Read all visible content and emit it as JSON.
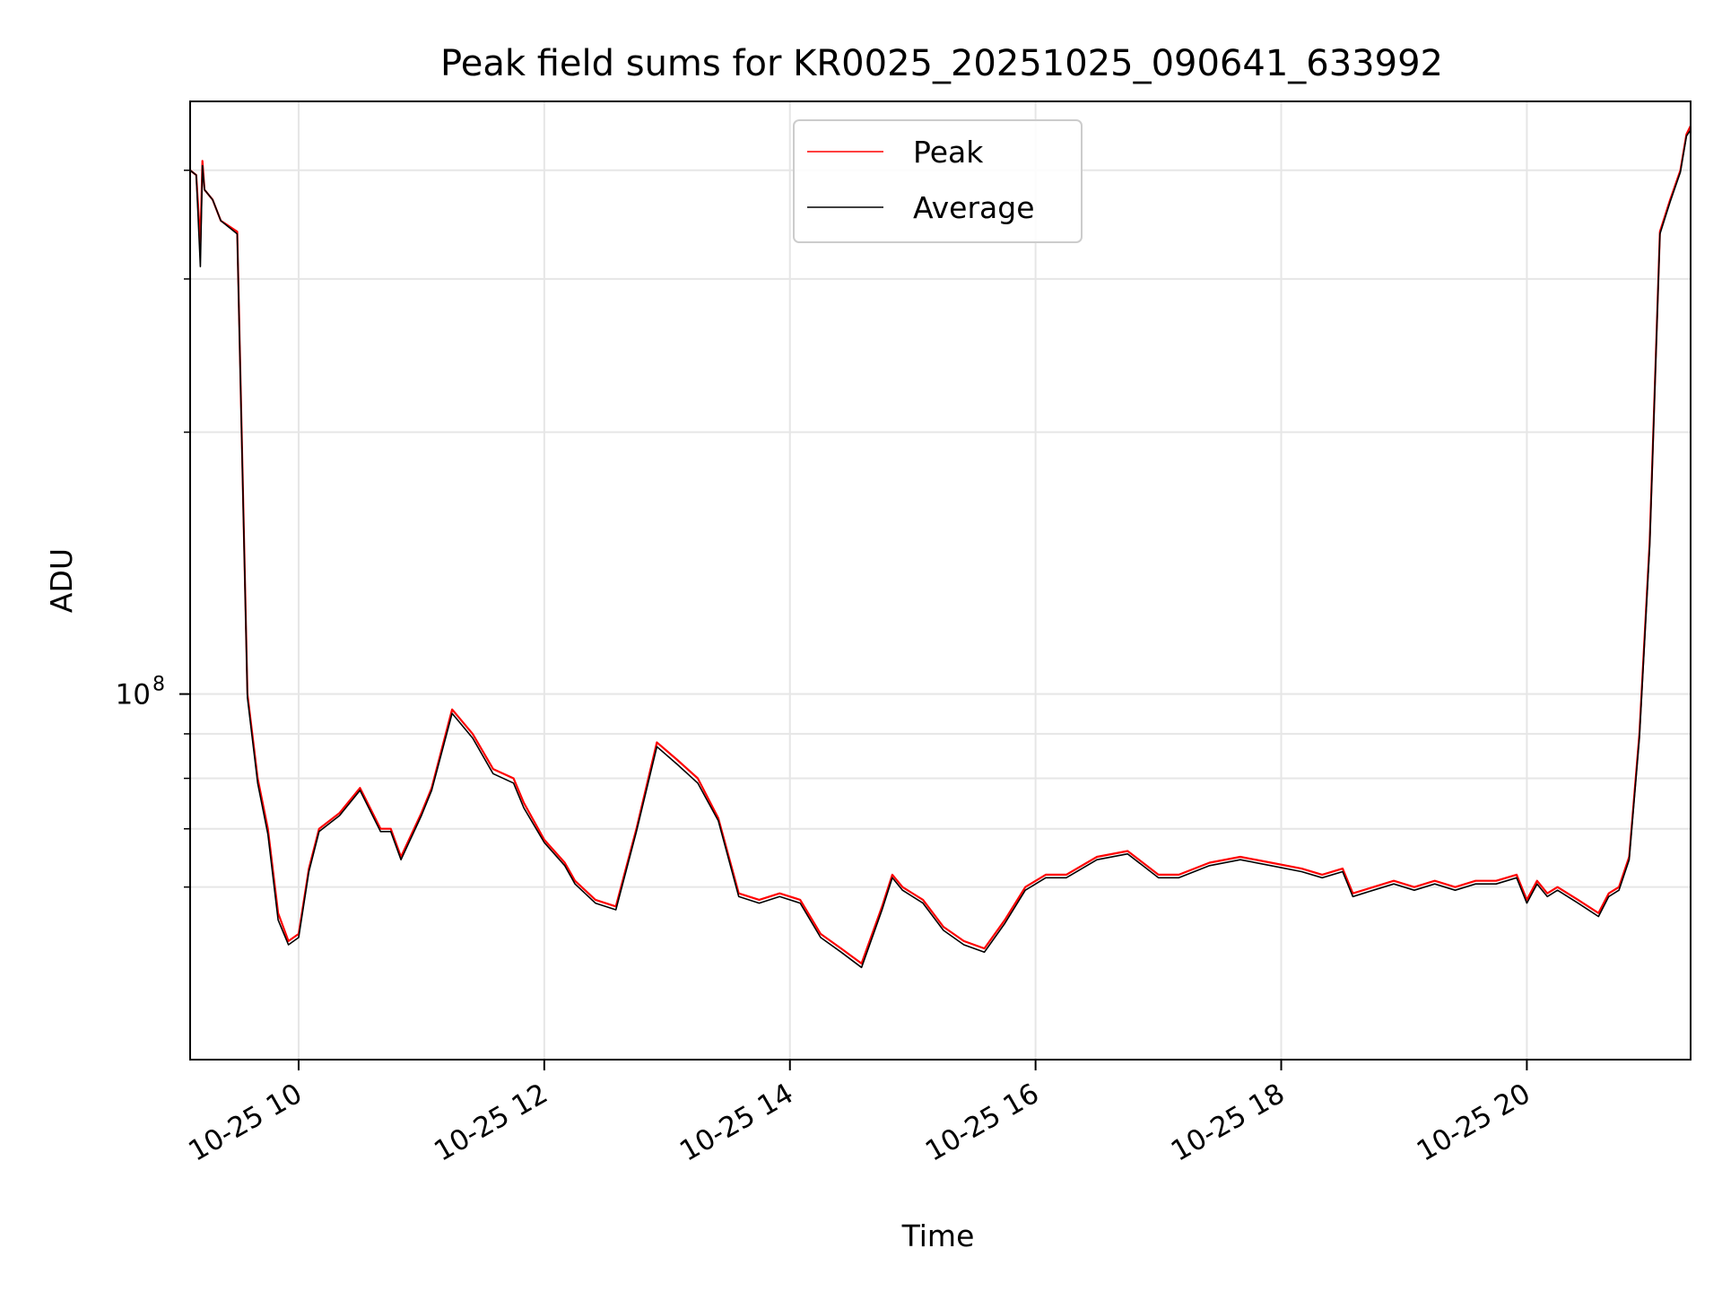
{
  "chart_data": {
    "type": "line",
    "title": "Peak field sums for KR0025_20251025_090641_633992",
    "xlabel": "Time",
    "ylabel": "ADU",
    "yscale": "log",
    "grid": true,
    "legend_position": "top-center",
    "xlim": [
      "2025-10-25 09:07",
      "2025-10-25 21:20"
    ],
    "ylim": [
      38000000,
      480000000
    ],
    "x_ticks": [
      {
        "t": "2025-10-25 10:00",
        "label": "10-25 10"
      },
      {
        "t": "2025-10-25 12:00",
        "label": "10-25 12"
      },
      {
        "t": "2025-10-25 14:00",
        "label": "10-25 14"
      },
      {
        "t": "2025-10-25 16:00",
        "label": "10-25 16"
      },
      {
        "t": "2025-10-25 18:00",
        "label": "10-25 18"
      },
      {
        "t": "2025-10-25 20:00",
        "label": "10-25 20"
      }
    ],
    "y_major_ticks": [
      {
        "value": 100000000,
        "base": "10",
        "exp": "8"
      }
    ],
    "y_minor_ticks": [
      60000000,
      70000000,
      80000000,
      90000000,
      200000000,
      300000000,
      400000000
    ],
    "x": [
      "2025-10-25 09:07",
      "2025-10-25 09:10",
      "2025-10-25 09:12",
      "2025-10-25 09:13",
      "2025-10-25 09:14",
      "2025-10-25 09:18",
      "2025-10-25 09:22",
      "2025-10-25 09:30",
      "2025-10-25 09:35",
      "2025-10-25 09:40",
      "2025-10-25 09:45",
      "2025-10-25 09:50",
      "2025-10-25 09:55",
      "2025-10-25 10:00",
      "2025-10-25 10:05",
      "2025-10-25 10:10",
      "2025-10-25 10:20",
      "2025-10-25 10:30",
      "2025-10-25 10:40",
      "2025-10-25 10:45",
      "2025-10-25 10:50",
      "2025-10-25 11:00",
      "2025-10-25 11:05",
      "2025-10-25 11:15",
      "2025-10-25 11:25",
      "2025-10-25 11:35",
      "2025-10-25 11:45",
      "2025-10-25 11:50",
      "2025-10-25 12:00",
      "2025-10-25 12:10",
      "2025-10-25 12:15",
      "2025-10-25 12:25",
      "2025-10-25 12:35",
      "2025-10-25 12:45",
      "2025-10-25 12:55",
      "2025-10-25 13:05",
      "2025-10-25 13:15",
      "2025-10-25 13:25",
      "2025-10-25 13:35",
      "2025-10-25 13:45",
      "2025-10-25 13:55",
      "2025-10-25 14:05",
      "2025-10-25 14:15",
      "2025-10-25 14:25",
      "2025-10-25 14:35",
      "2025-10-25 14:45",
      "2025-10-25 14:50",
      "2025-10-25 14:55",
      "2025-10-25 15:05",
      "2025-10-25 15:15",
      "2025-10-25 15:25",
      "2025-10-25 15:35",
      "2025-10-25 15:45",
      "2025-10-25 15:55",
      "2025-10-25 16:05",
      "2025-10-25 16:15",
      "2025-10-25 16:30",
      "2025-10-25 16:45",
      "2025-10-25 17:00",
      "2025-10-25 17:10",
      "2025-10-25 17:25",
      "2025-10-25 17:40",
      "2025-10-25 17:55",
      "2025-10-25 18:10",
      "2025-10-25 18:20",
      "2025-10-25 18:30",
      "2025-10-25 18:35",
      "2025-10-25 18:45",
      "2025-10-25 18:55",
      "2025-10-25 19:05",
      "2025-10-25 19:15",
      "2025-10-25 19:25",
      "2025-10-25 19:35",
      "2025-10-25 19:45",
      "2025-10-25 19:55",
      "2025-10-25 20:00",
      "2025-10-25 20:05",
      "2025-10-25 20:10",
      "2025-10-25 20:15",
      "2025-10-25 20:25",
      "2025-10-25 20:35",
      "2025-10-25 20:40",
      "2025-10-25 20:45",
      "2025-10-25 20:50",
      "2025-10-25 20:55",
      "2025-10-25 21:00",
      "2025-10-25 21:05",
      "2025-10-25 21:10",
      "2025-10-25 21:15",
      "2025-10-25 21:18",
      "2025-10-25 21:20"
    ],
    "series": [
      {
        "name": "Peak",
        "color": "#ff0000",
        "values": [
          400000000,
          395000000,
          330000000,
          410000000,
          380000000,
          370000000,
          350000000,
          340000000,
          100000000,
          80000000,
          70000000,
          56000000,
          52000000,
          53000000,
          63000000,
          70000000,
          73000000,
          78000000,
          70000000,
          70000000,
          65000000,
          73000000,
          78000000,
          96000000,
          90000000,
          82000000,
          80000000,
          75000000,
          68000000,
          64000000,
          61000000,
          58000000,
          57000000,
          70000000,
          88000000,
          84000000,
          80000000,
          72000000,
          59000000,
          58000000,
          59000000,
          58000000,
          53000000,
          51000000,
          49000000,
          57000000,
          62000000,
          60000000,
          58000000,
          54000000,
          52000000,
          51000000,
          55000000,
          60000000,
          62000000,
          62000000,
          65000000,
          66000000,
          62000000,
          62000000,
          64000000,
          65000000,
          64000000,
          63000000,
          62000000,
          63000000,
          59000000,
          60000000,
          61000000,
          60000000,
          61000000,
          60000000,
          61000000,
          61000000,
          62000000,
          58000000,
          61000000,
          59000000,
          60000000,
          58000000,
          56000000,
          59000000,
          60000000,
          65000000,
          90000000,
          150000000,
          340000000,
          370000000,
          400000000,
          440000000,
          450000000
        ]
      },
      {
        "name": "Average",
        "color": "#000000",
        "values": [
          400000000,
          395000000,
          310000000,
          405000000,
          380000000,
          370000000,
          350000000,
          338000000,
          99000000,
          79000000,
          69000000,
          55000000,
          51500000,
          52500000,
          62500000,
          69500000,
          72500000,
          77500000,
          69500000,
          69500000,
          64500000,
          72500000,
          77500000,
          95000000,
          89000000,
          81000000,
          79000000,
          74000000,
          67500000,
          63500000,
          60500000,
          57500000,
          56500000,
          69500000,
          87000000,
          83000000,
          79000000,
          71500000,
          58500000,
          57500000,
          58500000,
          57500000,
          52500000,
          50500000,
          48500000,
          56500000,
          61500000,
          59500000,
          57500000,
          53500000,
          51500000,
          50500000,
          54500000,
          59500000,
          61500000,
          61500000,
          64500000,
          65500000,
          61500000,
          61500000,
          63500000,
          64500000,
          63500000,
          62500000,
          61500000,
          62500000,
          58500000,
          59500000,
          60500000,
          59500000,
          60500000,
          59500000,
          60500000,
          60500000,
          61500000,
          57500000,
          60500000,
          58500000,
          59500000,
          57500000,
          55500000,
          58500000,
          59500000,
          64500000,
          89000000,
          148000000,
          338000000,
          368000000,
          398000000,
          438000000,
          445000000
        ]
      }
    ]
  }
}
